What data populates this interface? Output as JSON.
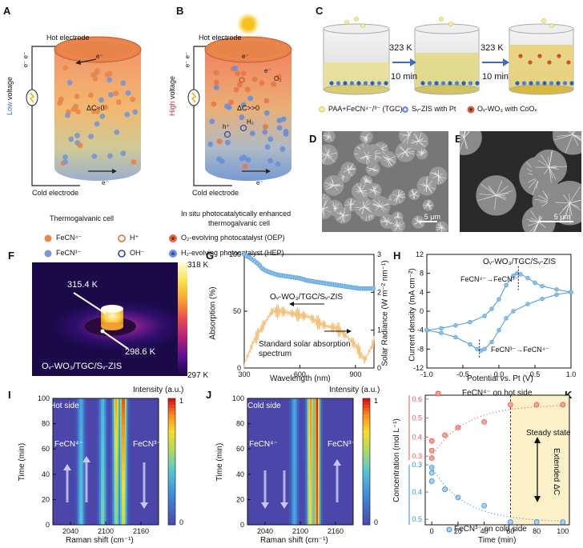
{
  "labels": {
    "A": "A",
    "B": "B",
    "C": "C",
    "D": "D",
    "E": "E",
    "F": "F",
    "G": "G",
    "H": "H",
    "I": "I",
    "J": "J",
    "K": "K"
  },
  "panelA": {
    "hot": "Hot electrode",
    "cold": "Cold electrode",
    "low1": "Low",
    "low2": " voltage",
    "e": "e⁻",
    "ee": "e⁻ e⁻",
    "delta": "ΔC≈0",
    "caption": "Thermogalvanic cell"
  },
  "panelB": {
    "hot": "Hot electrode",
    "cold": "Cold electrode",
    "high1": "High",
    "high2": " voltage",
    "e": "e⁻",
    "ee": "e⁻ e⁻",
    "o2": "O₂",
    "h2": "H₂",
    "h": "h⁺",
    "delta": "ΔC>>0",
    "caption1": "In situ photocatalytically enhanced",
    "caption2": "thermogalvanic cell"
  },
  "legendAB": {
    "fecn4": "FeCN⁴⁻",
    "h": "H⁺",
    "oep": "O₂-evolving photocatalyst (OEP)",
    "fecn3": "FeCN³⁻",
    "oh": "OH⁻",
    "hep": "H₂-evolving photocatalyst (HEP)"
  },
  "panelC": {
    "temp1": "323 K",
    "time1": "10 min",
    "temp2": "323 K",
    "time2": "10 min",
    "leg1": "PAA+FeCN⁴⁻/³⁻ (TGC)",
    "leg2": "Sᵥ-ZIS with Pt",
    "leg3": "Oᵥ-WO₃ with CoOₓ"
  },
  "panelD": {
    "scale": "5 μm"
  },
  "panelE": {
    "scale": "5 μm"
  },
  "panelF": {
    "t1": "315.4 K",
    "t2": "298.6 K",
    "sample": "Oᵥ-WO₃/TGC/Sᵥ-ZIS",
    "cmax": "318 K",
    "cmin": "297 K"
  },
  "panelG": {
    "xlabel": "Wavelength (nm)",
    "ylabel": "Absorption (%)",
    "y2label": "Solar Radiance (W m⁻² nm⁻¹)",
    "sample": "Oᵥ-WO₃/TGC/Sᵥ-ZIS",
    "solar1": "Standard solar absorption",
    "solar2": "spectrum",
    "xticks": [
      "300",
      "600",
      "900"
    ],
    "yticks": [
      "0",
      "50",
      "100"
    ],
    "y2ticks": [
      "0",
      "1",
      "2",
      "3"
    ]
  },
  "panelH": {
    "xlabel": "Potential vs. Pt (V)",
    "ylabel": "Current density  (mA cm⁻²)",
    "sample": "Oᵥ-WO₃/TGC/Sᵥ-ZIS",
    "ox": "FeCN⁴⁻→FeCN³⁻",
    "red": "FeCN³⁻→FeCN⁴⁻",
    "xticks": [
      "-1.0",
      "-0.5",
      "0.0",
      "0.5",
      "1.0"
    ],
    "yticks": [
      "-12",
      "-8",
      "-4",
      "0",
      "4",
      "8",
      "12"
    ]
  },
  "panelI": {
    "side": "Hot side",
    "left": "FeCN⁴⁻",
    "right": "FeCN³⁻",
    "xlabel": "Raman shift (cm⁻¹)",
    "ylabel": "Time (min)",
    "clabel": "Intensity (a.u.)",
    "cmax": "1",
    "cmin": "0",
    "xticks": [
      "2040",
      "2100",
      "2160"
    ],
    "yticks": [
      "0",
      "20",
      "40",
      "60",
      "80",
      "100"
    ]
  },
  "panelJ": {
    "side": "Cold side",
    "left": "FeCN⁴⁻",
    "right": "FeCN³⁻",
    "xlabel": "Raman shift (cm⁻¹)",
    "ylabel": "Time (min)",
    "clabel": "Intensity (a.u.)",
    "cmax": "1",
    "cmin": "0",
    "xticks": [
      "2040",
      "2100",
      "2160"
    ],
    "yticks": [
      "0",
      "20",
      "40",
      "60",
      "80",
      "100"
    ]
  },
  "panelK": {
    "xlabel": "Time (min)",
    "ylabel": "Concentration (mol L⁻¹)",
    "hotlabel": "FeCN⁴⁻ on hot side",
    "coldlabel": "FeCN³⁻ on cold side",
    "steady": "Steady state",
    "extended": "Extended ΔC",
    "xticks": [
      "0",
      "20",
      "40",
      "60",
      "80",
      "100"
    ],
    "yticks_top": [
      "0.3",
      "0.4",
      "0.5",
      "0.6"
    ],
    "yticks_bottom": [
      "0.3",
      "0.4",
      "0.5"
    ]
  },
  "chart_data": [
    {
      "type": "line",
      "title": "",
      "xlabel": "Wavelength (nm)",
      "ylabel": "Absorption (%)",
      "xlim": [
        300,
        1000
      ],
      "ylim": [
        0,
        100
      ],
      "y2lim": [
        0,
        3
      ],
      "series": [
        {
          "name": "Oᵥ-WO₃/TGC/Sᵥ-ZIS",
          "axis": "left",
          "color": "#4a9ad8",
          "x": [
            300,
            340,
            380,
            400,
            440,
            480,
            520,
            560,
            600,
            640,
            680,
            720,
            760,
            800,
            840,
            880,
            920,
            960,
            1000
          ],
          "y": [
            100,
            96,
            91,
            87,
            84,
            82,
            81,
            80,
            79,
            77,
            76,
            75,
            74,
            73,
            72,
            71,
            70,
            70,
            70
          ]
        },
        {
          "name": "Standard solar absorption spectrum",
          "axis": "right",
          "color": "#f5c27a",
          "x": [
            300,
            350,
            400,
            450,
            500,
            550,
            600,
            650,
            700,
            750,
            800,
            850,
            900,
            950,
            1000
          ],
          "y": [
            0.1,
            0.7,
            1.1,
            1.5,
            1.5,
            1.45,
            1.4,
            1.35,
            1.2,
            1.1,
            1.05,
            0.85,
            0.6,
            0.2,
            0.7
          ]
        }
      ]
    },
    {
      "type": "line",
      "title": "",
      "xlabel": "Potential vs. Pt (V)",
      "ylabel": "Current density (mA cm⁻²)",
      "xlim": [
        -1,
        1
      ],
      "ylim": [
        -12,
        12
      ],
      "series": [
        {
          "name": "forward",
          "color": "#4a9ad8",
          "x": [
            -1,
            -0.8,
            -0.6,
            -0.4,
            -0.2,
            -0.1,
            0,
            0.1,
            0.2,
            0.25,
            0.3,
            0.4,
            0.5,
            0.6,
            0.8,
            1
          ],
          "y": [
            -4,
            -3.6,
            -3,
            -2.3,
            -1,
            0.5,
            2.5,
            5.5,
            7.5,
            8,
            7.8,
            7,
            6,
            5.3,
            4.6,
            4
          ]
        },
        {
          "name": "reverse",
          "color": "#4a9ad8",
          "x": [
            1,
            0.8,
            0.6,
            0.4,
            0.2,
            0.1,
            0,
            -0.1,
            -0.2,
            -0.25,
            -0.3,
            -0.4,
            -0.6,
            -0.8,
            -1
          ],
          "y": [
            4,
            3.5,
            2.6,
            1.5,
            0,
            -1.5,
            -4,
            -6.5,
            -8,
            -8.3,
            -8,
            -7,
            -5.5,
            -4.6,
            -4
          ]
        }
      ]
    },
    {
      "type": "heatmap",
      "title": "Hot side",
      "xlabel": "Raman shift (cm⁻¹)",
      "ylabel": "Time (min)",
      "xlim": [
        2010,
        2190
      ],
      "ylim": [
        0,
        100
      ],
      "bands": [
        {
          "x": 2058,
          "base": 0.45,
          "end": 0.35
        },
        {
          "x": 2095,
          "base": 0.55,
          "end": 0.4
        },
        {
          "x": 2118,
          "base": 0.55,
          "end": 0.85
        },
        {
          "x": 2130,
          "base": 0.7,
          "end": 1.0
        }
      ]
    },
    {
      "type": "heatmap",
      "title": "Cold side",
      "xlabel": "Raman shift (cm⁻¹)",
      "ylabel": "Time (min)",
      "xlim": [
        2010,
        2190
      ],
      "ylim": [
        0,
        100
      ],
      "bands": [
        {
          "x": 2090,
          "base": 0.35,
          "end": 0.35
        },
        {
          "x": 2117,
          "base": 0.75,
          "end": 0.9
        },
        {
          "x": 2128,
          "base": 0.95,
          "end": 1.0
        }
      ]
    },
    {
      "type": "scatter",
      "title": "",
      "xlabel": "Time (min)",
      "ylabel": "Concentration (mol L⁻¹)",
      "xlim": [
        -5,
        105
      ],
      "series": [
        {
          "name": "FeCN⁴⁻ on hot side",
          "color": "#e8594f",
          "x": [
            0,
            0,
            0,
            10,
            20,
            40,
            60,
            80,
            100
          ],
          "y": [
            0.29,
            0.33,
            0.38,
            0.41,
            0.45,
            0.48,
            0.57,
            0.57,
            0.57
          ]
        },
        {
          "name": "FeCN³⁻ on cold side",
          "color": "#3a8fd0",
          "x": [
            0,
            0,
            0,
            10,
            20,
            40,
            60,
            80,
            100
          ],
          "y": [
            0.31,
            0.33,
            0.36,
            0.39,
            0.42,
            0.45,
            0.51,
            0.51,
            0.51
          ]
        }
      ]
    }
  ]
}
